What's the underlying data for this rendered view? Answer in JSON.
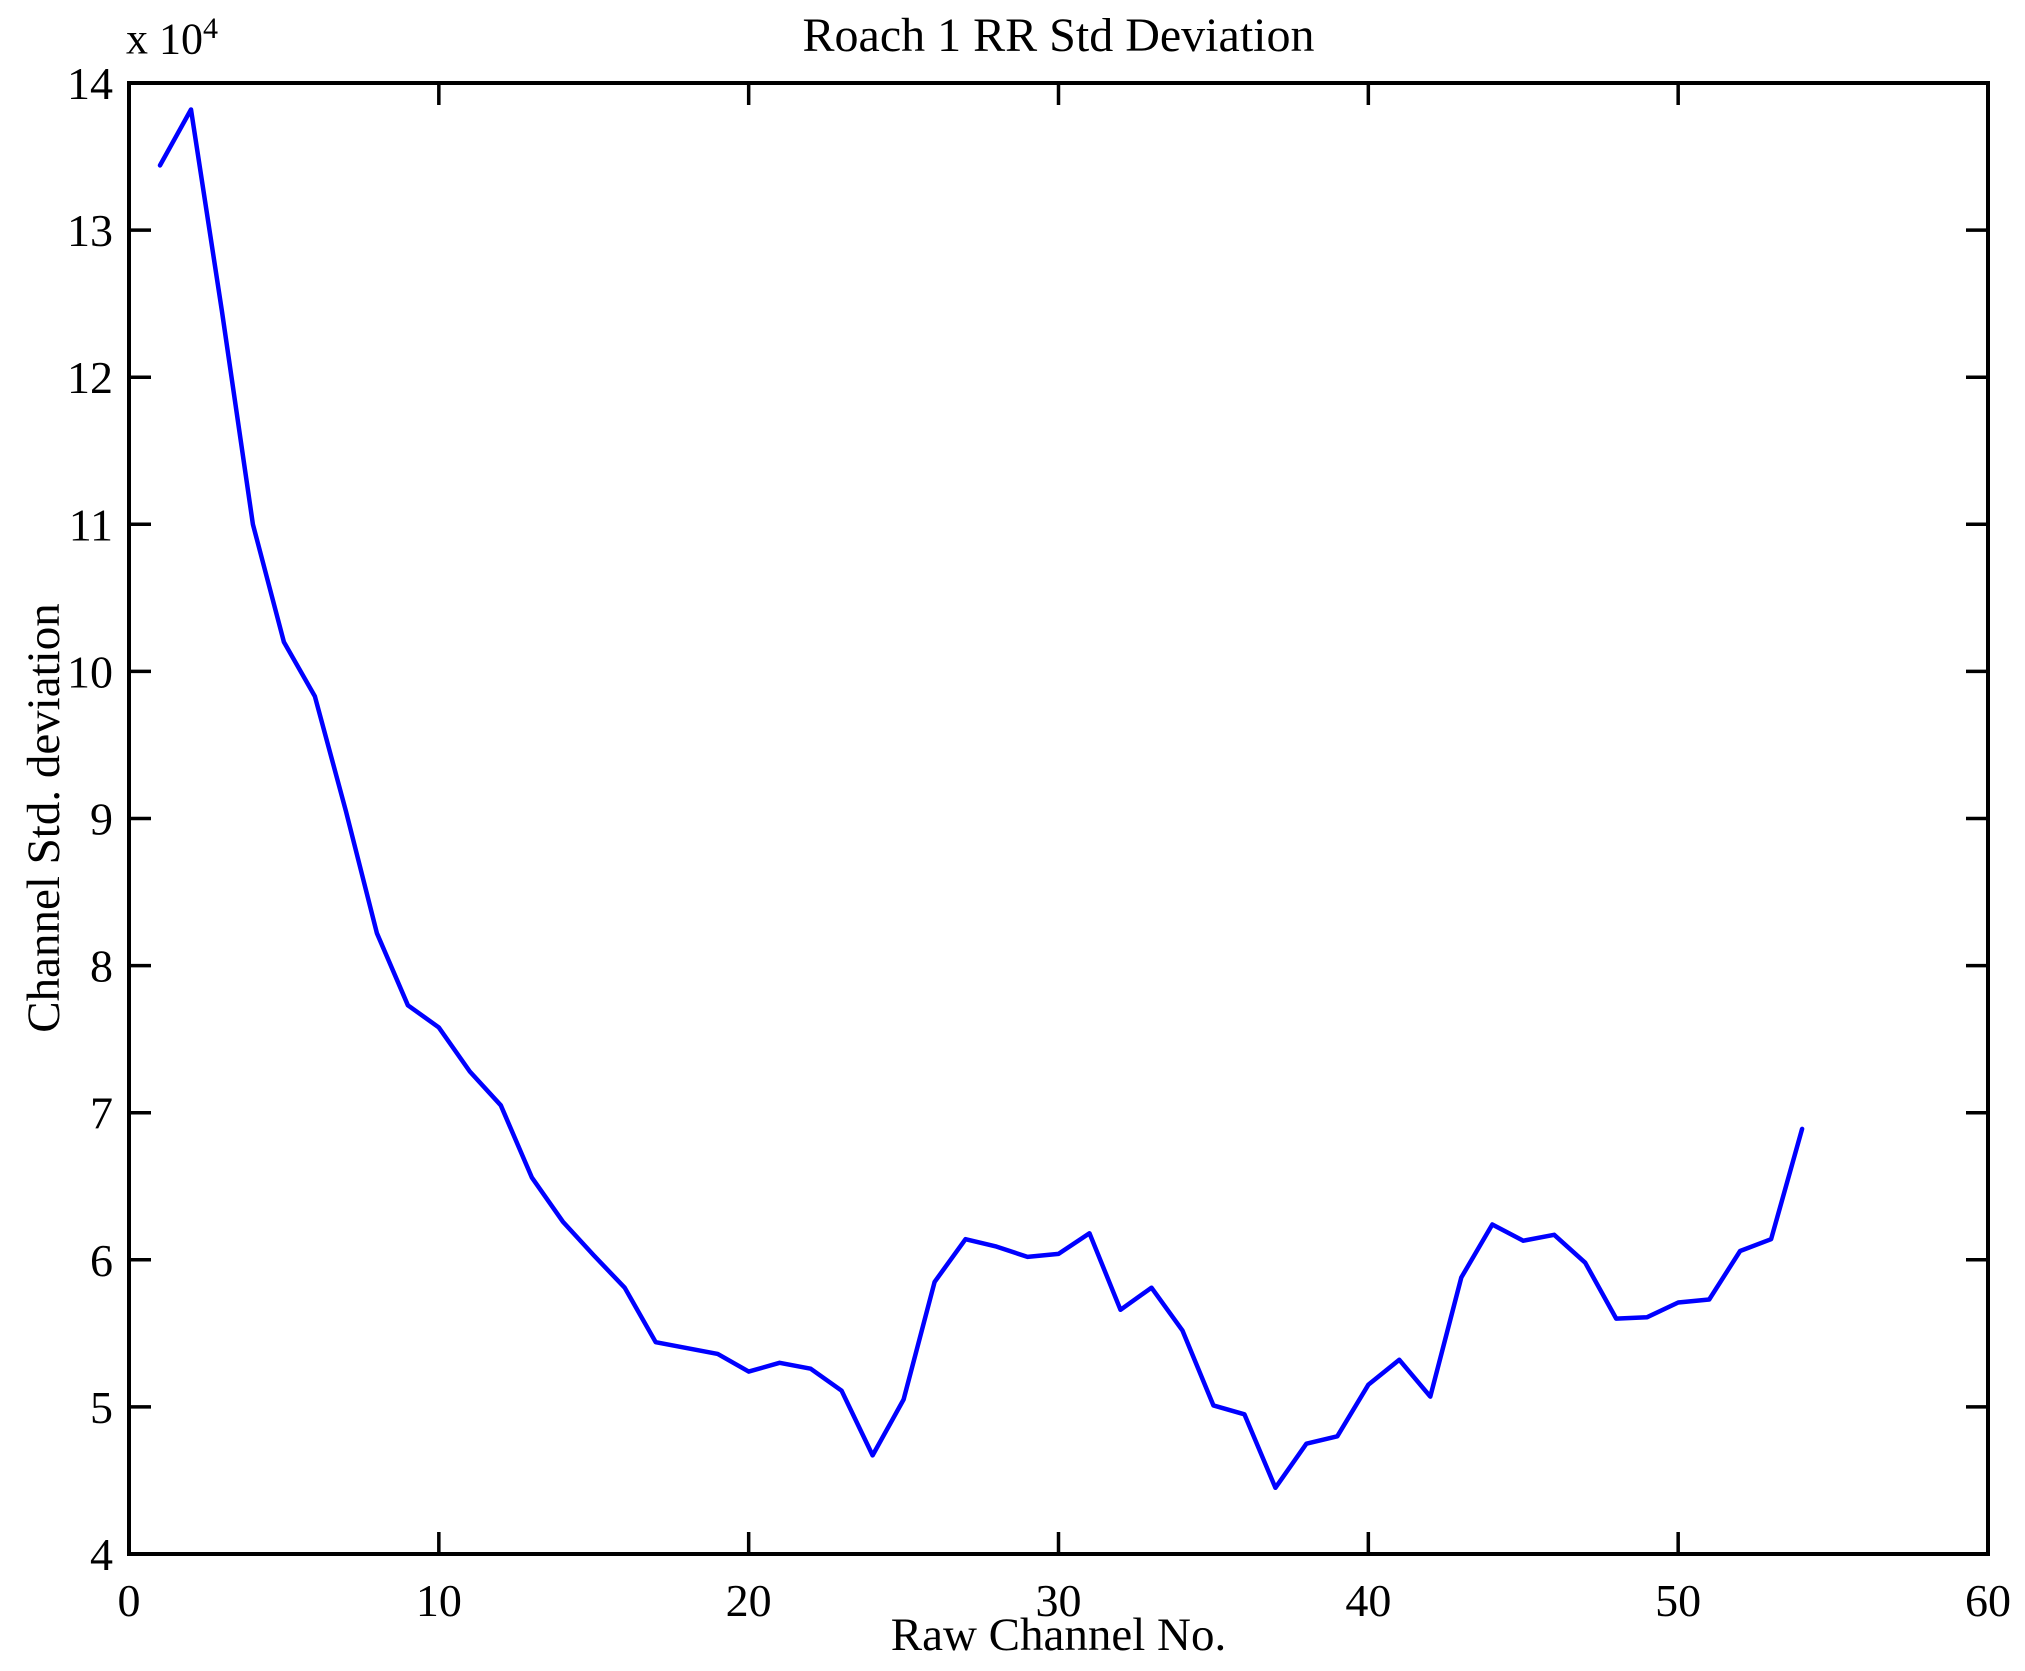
{
  "chart_data": {
    "type": "line",
    "title": "Roach 1 RR Std Deviation",
    "xlabel": "Raw Channel No.",
    "ylabel": "Channel Std. deviation",
    "y_multiplier_base": "x 10",
    "y_multiplier_exponent": "4",
    "legend": "none",
    "grid": false,
    "xlim": [
      0,
      60
    ],
    "ylim": [
      4,
      14
    ],
    "x_ticks": [
      0,
      10,
      20,
      30,
      40,
      50,
      60
    ],
    "y_ticks": [
      4,
      5,
      6,
      7,
      8,
      9,
      10,
      11,
      12,
      13,
      14
    ],
    "line_color": "#0000FF",
    "axis_color": "#000000",
    "background_color": "#FFFFFF",
    "x": [
      1,
      2,
      3,
      4,
      5,
      6,
      7,
      8,
      9,
      10,
      11,
      12,
      13,
      14,
      15,
      16,
      17,
      18,
      19,
      20,
      21,
      22,
      23,
      24,
      25,
      26,
      27,
      28,
      29,
      30,
      31,
      32,
      33,
      34,
      35,
      36,
      37,
      38,
      39,
      40,
      41,
      42,
      43,
      44,
      45,
      46,
      47,
      48,
      49,
      50,
      51,
      52,
      53,
      54
    ],
    "y": [
      13.44,
      13.82,
      12.45,
      11.0,
      10.2,
      9.83,
      9.05,
      8.22,
      7.73,
      7.58,
      7.28,
      7.05,
      6.56,
      6.26,
      6.03,
      5.81,
      5.44,
      5.4,
      5.36,
      5.24,
      5.3,
      5.26,
      5.11,
      4.67,
      5.05,
      5.85,
      6.14,
      6.09,
      6.02,
      6.04,
      6.18,
      5.66,
      5.81,
      5.52,
      5.01,
      4.95,
      4.45,
      4.75,
      4.8,
      5.15,
      5.32,
      5.07,
      5.88,
      6.24,
      6.13,
      6.17,
      5.98,
      5.6,
      5.61,
      5.71,
      5.73,
      6.06,
      6.14,
      6.89
    ]
  }
}
